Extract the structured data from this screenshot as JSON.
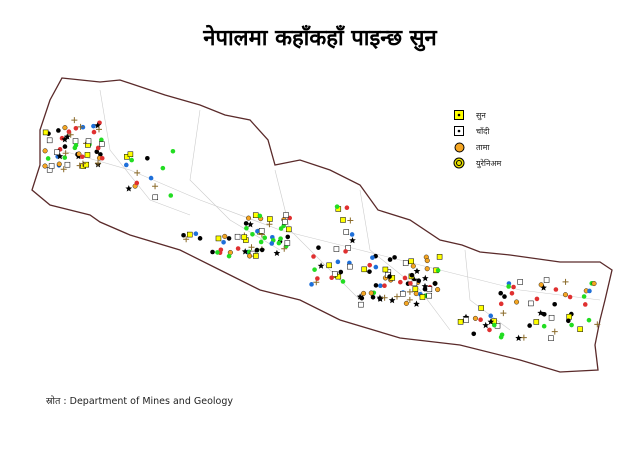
{
  "title": "नेपालमा कहाँकहाँ पाइन्छ सुन",
  "legend": [
    {
      "label": "सुन",
      "symbol": "square-dot",
      "color": "#ffff00"
    },
    {
      "label": "चाँदी",
      "symbol": "square-dot",
      "color": "#ffffff"
    },
    {
      "label": "तामा",
      "symbol": "circle",
      "color": "#f5a623"
    },
    {
      "label": "युरेनिअम",
      "symbol": "double-circle",
      "color": "#e8e000"
    }
  ],
  "source": "स्रोत : Department of Mines and Geology",
  "colors": {
    "border": "#5a2a2a",
    "district_lines": "#cccccc",
    "gold": "#ffff00",
    "copper": "#f5a623",
    "other_red": "#e03030",
    "other_blue": "#1e6fd9",
    "other_green": "#22dd22"
  }
}
